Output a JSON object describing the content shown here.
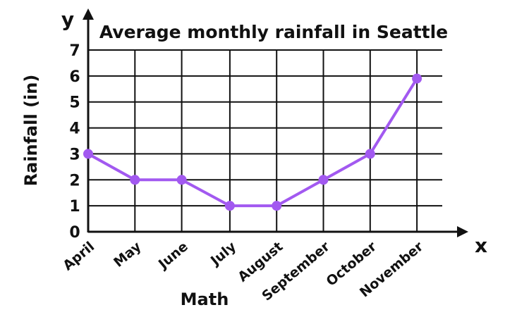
{
  "chart_data": {
    "type": "line",
    "title": "Average monthly rainfall in Seattle",
    "xlabel": "Math",
    "ylabel": "Rainfall (in)",
    "x_axis_letter": "x",
    "y_axis_letter": "y",
    "categories": [
      "April",
      "May",
      "June",
      "July",
      "August",
      "September",
      "October",
      "November"
    ],
    "series": [
      {
        "values": [
          3,
          2,
          2,
          1,
          1,
          2,
          3,
          5.9
        ]
      }
    ],
    "y_ticks": [
      "0",
      "1",
      "2",
      "3",
      "4",
      "5",
      "6",
      "7"
    ],
    "ylim": [
      0,
      7
    ],
    "grid": true,
    "line_color": "#a259f0",
    "marker_color": "#a259f0"
  }
}
